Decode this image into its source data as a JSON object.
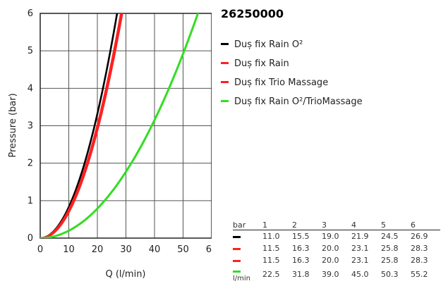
{
  "chart_data": {
    "type": "line",
    "title": "26250000",
    "xlabel": "Q (l/min)",
    "ylabel": "Pressure (bar)",
    "xlim": [
      0,
      60
    ],
    "ylim": [
      0,
      6
    ],
    "xticks": [
      0,
      10,
      20,
      30,
      40,
      50,
      60
    ],
    "yticks": [
      0,
      1,
      2,
      3,
      4,
      5,
      6
    ],
    "grid": true,
    "legend_position": "right",
    "pressures": [
      "1",
      "2",
      "3",
      "4",
      "5",
      "6"
    ],
    "series": [
      {
        "name": "Duș fix Rain O²",
        "color": "#000000",
        "flows": [
          11.0,
          15.5,
          19.0,
          21.9,
          24.5,
          26.9
        ]
      },
      {
        "name": "Duș fix Rain",
        "color": "#ff2020",
        "flows": [
          11.5,
          16.3,
          20.0,
          23.1,
          25.8,
          28.3
        ]
      },
      {
        "name": "Duș fix Trio Massage",
        "color": "#ff2020",
        "flows": [
          11.5,
          16.3,
          20.0,
          23.1,
          25.8,
          28.3
        ]
      },
      {
        "name": "Duș fix Rain O²/TrioMassage",
        "color": "#33dd22",
        "flows": [
          22.5,
          31.8,
          39.0,
          45.0,
          50.3,
          55.2
        ]
      }
    ]
  },
  "table": {
    "header_label": "bar",
    "unit_label": "l/min"
  }
}
